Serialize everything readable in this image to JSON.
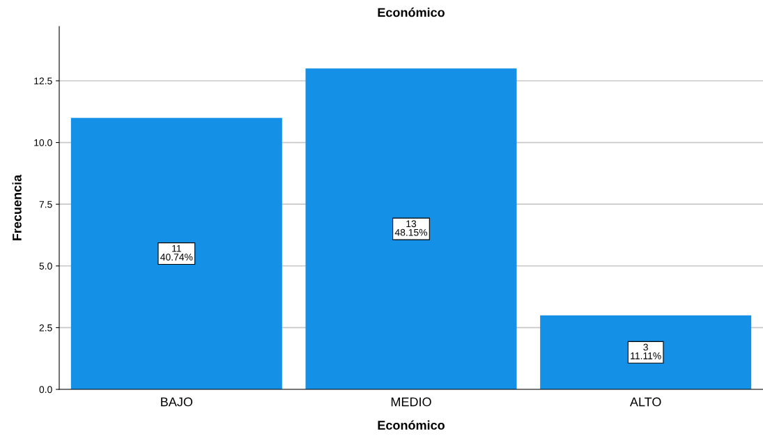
{
  "chart_data": {
    "type": "bar",
    "title": "Económico",
    "xlabel": "Económico",
    "ylabel": "Frecuencia",
    "categories": [
      "BAJO",
      "MEDIO",
      "ALTO"
    ],
    "values": [
      11,
      13,
      3
    ],
    "value_labels": [
      "11\n40.74%",
      "13\n48.15%",
      "3\n11.11%"
    ],
    "color": "#1490e6",
    "ylim": [
      0,
      14.7
    ],
    "yticks": [
      {
        "value": 0,
        "label": "0.0"
      },
      {
        "value": 2.5,
        "label": "2.5"
      },
      {
        "value": 5,
        "label": "5.0"
      },
      {
        "value": 7.5,
        "label": "7.5"
      },
      {
        "value": 10,
        "label": "10.0"
      },
      {
        "value": 12.5,
        "label": "12.5"
      }
    ],
    "grid": "y",
    "legend": false
  }
}
